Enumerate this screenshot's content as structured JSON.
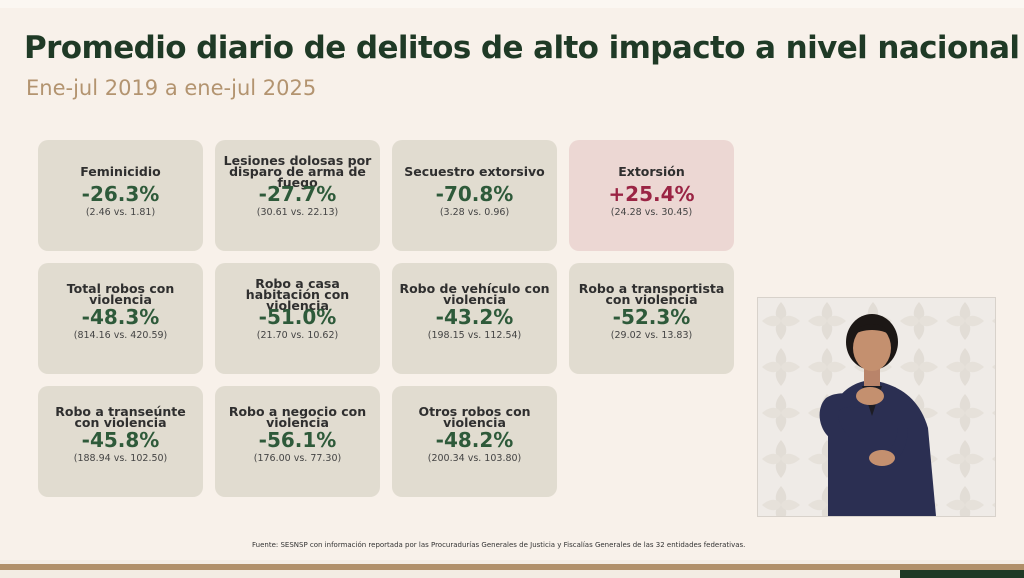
{
  "header": {
    "title": "Promedio diario de delitos de alto impacto a nivel nacional",
    "subtitle": "Ene-jul 2019 a ene-jul 2025"
  },
  "cards": [
    {
      "label": "Feminicidio",
      "value": "-26.3%",
      "compare": "(2.46 vs. 1.81)"
    },
    {
      "label": "Lesiones dolosas por disparo de arma de fuego",
      "value": "-27.7%",
      "compare": "(30.61 vs. 22.13)"
    },
    {
      "label": "Secuestro extorsivo",
      "value": "-70.8%",
      "compare": "(3.28 vs. 0.96)"
    },
    {
      "label": "Extorsión",
      "value": "+25.4%",
      "compare": "(24.28 vs. 30.45)"
    },
    {
      "label": "Total robos con violencia",
      "value": "-48.3%",
      "compare": "(814.16 vs. 420.59)"
    },
    {
      "label": "Robo a casa habitación con violencia",
      "value": "-51.0%",
      "compare": "(21.70 vs. 10.62)"
    },
    {
      "label": "Robo de vehículo con violencia",
      "value": "-43.2%",
      "compare": "(198.15 vs. 112.54)"
    },
    {
      "label": "Robo a transportista con violencia",
      "value": "-52.3%",
      "compare": "(29.02 vs. 13.83)"
    },
    {
      "label": "Robo a transeúnte con violencia",
      "value": "-45.8%",
      "compare": "(188.94 vs. 102.50)"
    },
    {
      "label": "Robo a negocio con violencia",
      "value": "-56.1%",
      "compare": "(176.00 vs. 77.30)"
    },
    {
      "label": "Otros robos con violencia",
      "value": "-48.2%",
      "compare": "(200.34 vs. 103.80)"
    }
  ],
  "colors": {
    "decrease": "#2e5a3a",
    "increase": "#9a2444",
    "card_bg": "#e1dcd0",
    "card_alert_bg": "#ecd7d3",
    "accent_gold": "#b08f68"
  },
  "footer": {
    "source": "Fuente: SESNSP con información reportada por las Procuradurías Generales de Justicia y Fiscalías Generales de las 32 entidades federativas."
  }
}
